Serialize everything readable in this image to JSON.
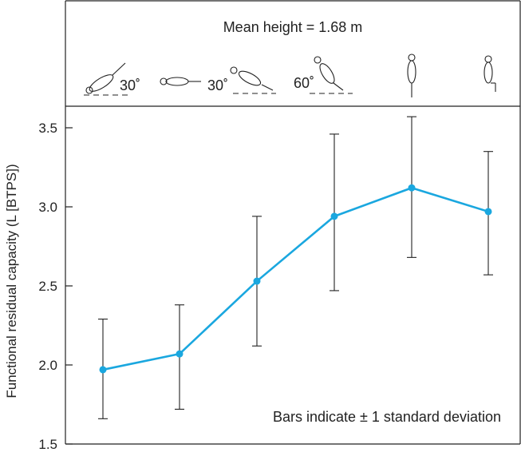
{
  "chart_data": {
    "type": "line",
    "header_text": "Mean height = 1.68 m",
    "posture_labels": [
      "30˚",
      "30˚",
      "60˚"
    ],
    "ylabel": "Functional residual capacity (L [BTPS])",
    "annotation": "Bars indicate ± 1 standard deviation",
    "ylim": [
      1.5,
      3.6
    ],
    "yticks": [
      1.5,
      2.0,
      2.5,
      3.0,
      3.5
    ],
    "ytick_labels": [
      "1.5",
      "2.0",
      "2.5",
      "3.0",
      "3.5"
    ],
    "grid": false,
    "series": [
      {
        "color": "#1aa7df",
        "points": [
          {
            "y": 1.97,
            "lo": 1.66,
            "hi": 2.29
          },
          {
            "y": 2.07,
            "lo": 1.72,
            "hi": 2.38
          },
          {
            "y": 2.53,
            "lo": 2.12,
            "hi": 2.94
          },
          {
            "y": 2.94,
            "lo": 2.47,
            "hi": 3.46
          },
          {
            "y": 3.12,
            "lo": 2.68,
            "hi": 3.57
          },
          {
            "y": 2.97,
            "lo": 2.57,
            "hi": 3.35
          }
        ]
      }
    ],
    "postures": [
      "supine-head-down-30",
      "supine",
      "supine-head-up-30",
      "sitting-reclined-60",
      "standing",
      "sitting"
    ]
  }
}
